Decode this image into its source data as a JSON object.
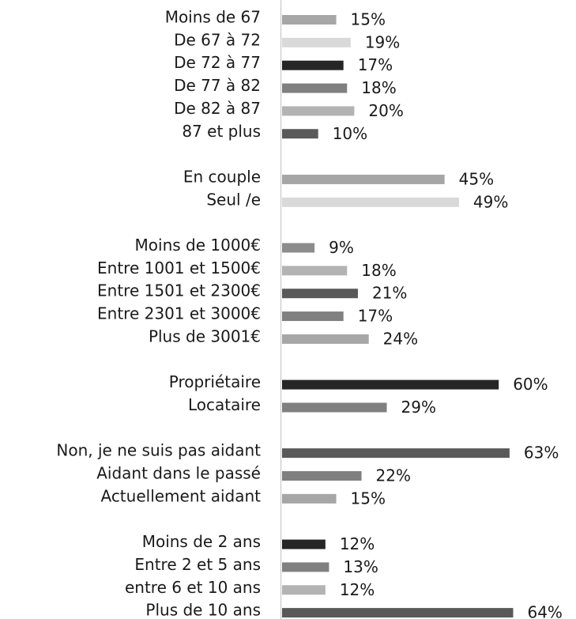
{
  "chart_data": {
    "type": "bar",
    "orientation": "horizontal",
    "categories": [
      "Moins de 67",
      "De 67 à 72",
      "De 72 à 77",
      "De 77 à 82",
      "De 82 à 87",
      "87 et plus",
      null,
      "En couple",
      "Seul /e",
      null,
      "Moins de 1000€",
      "Entre 1001 et 1500€",
      "Entre 1501 et 2300€",
      "Entre 2301 et 3000€",
      "Plus de 3001€",
      null,
      "Propriétaire",
      "Locataire",
      null,
      "Non, je ne suis pas aidant",
      "Aidant dans le passé",
      "Actuellement aidant",
      null,
      "Moins de 2 ans",
      "Entre 2 et 5 ans",
      "entre 6 et 10 ans",
      "Plus de 10 ans"
    ],
    "values": [
      15,
      19,
      17,
      18,
      20,
      10,
      null,
      45,
      49,
      null,
      9,
      18,
      21,
      17,
      24,
      null,
      60,
      29,
      null,
      63,
      22,
      15,
      null,
      12,
      13,
      12,
      64
    ],
    "value_labels": [
      "15%",
      "19%",
      "17%",
      "18%",
      "20%",
      "10%",
      null,
      "45%",
      "49%",
      null,
      "9%",
      "18%",
      "21%",
      "17%",
      "24%",
      null,
      "60%",
      "29%",
      null,
      "63%",
      "22%",
      "15%",
      null,
      "12%",
      "13%",
      "12%",
      "64%"
    ],
    "colors": [
      "#a6a6a6",
      "#d9d9d9",
      "#262626",
      "#808080",
      "#b3b3b3",
      "#595959",
      null,
      "#a6a6a6",
      "#d9d9d9",
      null,
      "#8c8c8c",
      "#b3b3b3",
      "#595959",
      "#808080",
      "#a6a6a6",
      null,
      "#262626",
      "#808080",
      null,
      "#595959",
      "#808080",
      "#a6a6a6",
      null,
      "#262626",
      "#808080",
      "#b3b3b3",
      "#595959"
    ],
    "label_colors": [
      "#1a1a1a",
      "#1a1a1a",
      "#1a1a1a",
      "#1a1a1a",
      "#1a1a1a",
      "#1a1a1a",
      null,
      "#1a1a1a",
      "#1a1a1a",
      null,
      "#1a1a1a",
      "#1a1a1a",
      "#1a1a1a",
      "#1a1a1a",
      "#5b9b2a",
      null,
      "#1a1a1a",
      "#1a1a1a",
      null,
      "#1a1a1a",
      "#1a1a1a",
      "#1a1a1a",
      null,
      "#1a1a1a",
      "#1a1a1a",
      "#1a1a1a",
      "#1a1a1a"
    ]
  }
}
